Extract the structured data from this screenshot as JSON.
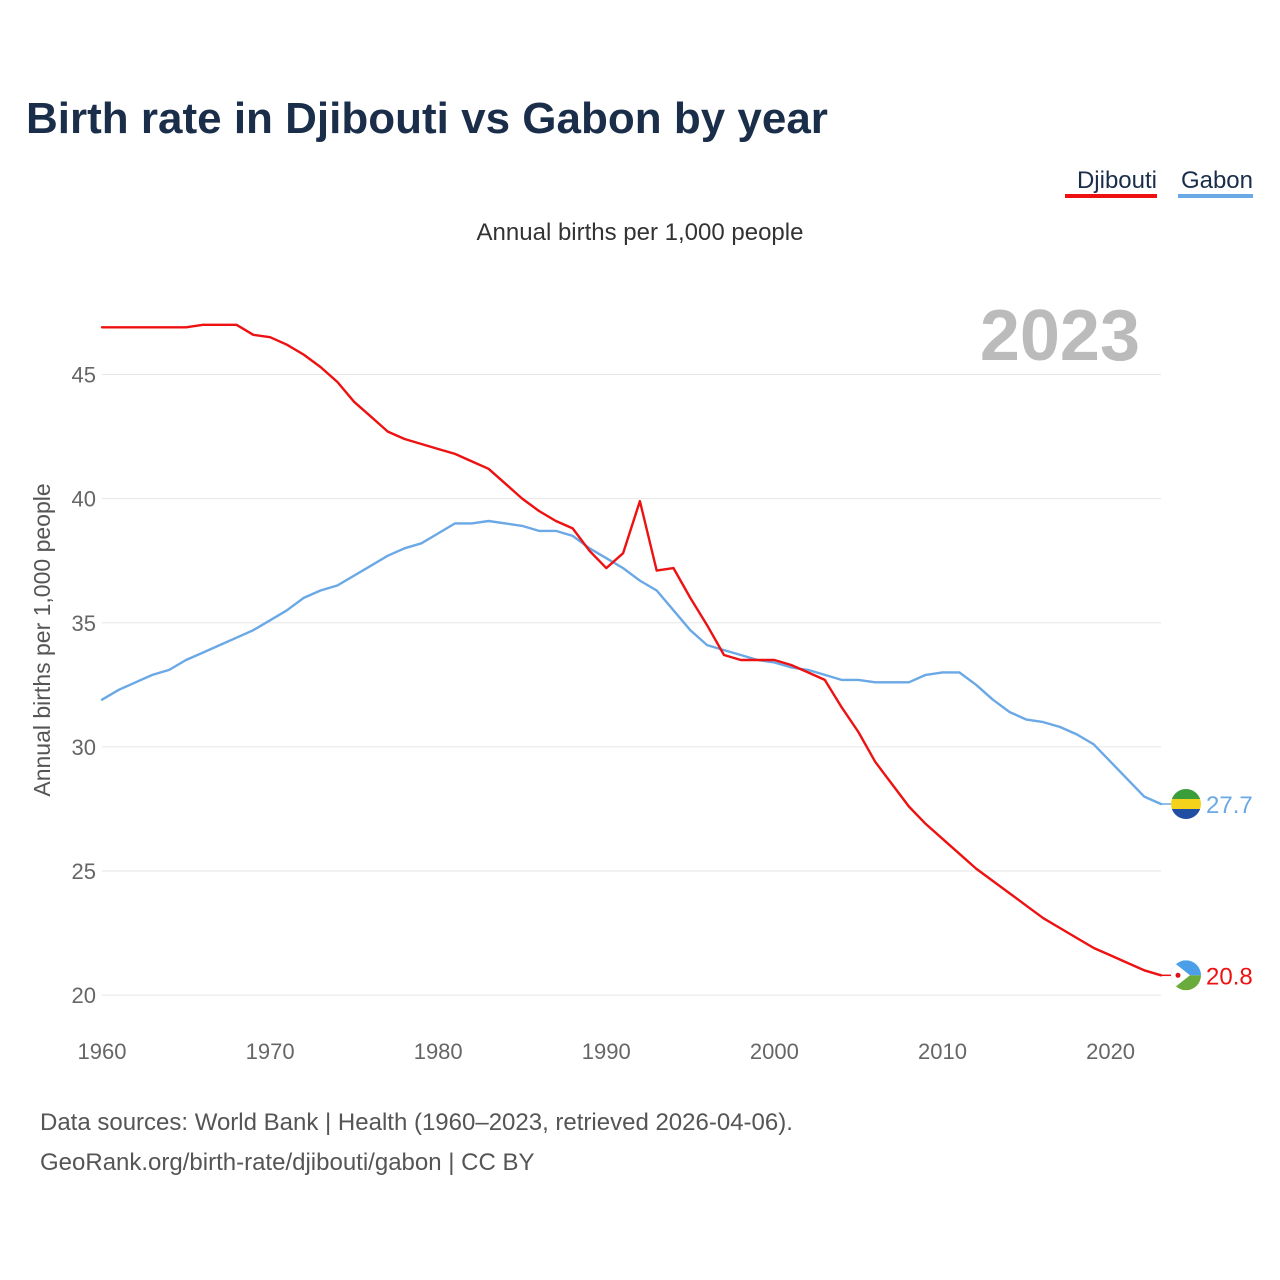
{
  "chart_data": {
    "type": "line",
    "title": "Birth rate in Djibouti vs Gabon by year",
    "subtitle": "Annual births per 1,000 people",
    "ylabel": "Annual births per 1,000 people",
    "xlabel": "",
    "year_label": "2023",
    "xlim": [
      1960,
      2023
    ],
    "ylim": [
      19,
      48
    ],
    "x_ticks": [
      1960,
      1970,
      1980,
      1990,
      2000,
      2010,
      2020
    ],
    "y_ticks": [
      20,
      25,
      30,
      35,
      40,
      45
    ],
    "grid": true,
    "legend_position": "top-right",
    "x": [
      1960,
      1961,
      1962,
      1963,
      1964,
      1965,
      1966,
      1967,
      1968,
      1969,
      1970,
      1971,
      1972,
      1973,
      1974,
      1975,
      1976,
      1977,
      1978,
      1979,
      1980,
      1981,
      1982,
      1983,
      1984,
      1985,
      1986,
      1987,
      1988,
      1989,
      1990,
      1991,
      1992,
      1993,
      1994,
      1995,
      1996,
      1997,
      1998,
      1999,
      2000,
      2001,
      2002,
      2003,
      2004,
      2005,
      2006,
      2007,
      2008,
      2009,
      2010,
      2011,
      2012,
      2013,
      2014,
      2015,
      2016,
      2017,
      2018,
      2019,
      2020,
      2021,
      2022,
      2023
    ],
    "series": [
      {
        "name": "Djibouti",
        "color": "#ee1111",
        "end_label": "20.8",
        "values": [
          46.9,
          46.9,
          46.9,
          46.9,
          46.9,
          46.9,
          47.0,
          47.0,
          47.0,
          46.6,
          46.5,
          46.2,
          45.8,
          45.3,
          44.7,
          43.9,
          43.3,
          42.7,
          42.4,
          42.2,
          42.0,
          41.8,
          41.5,
          41.2,
          40.6,
          40.0,
          39.5,
          39.1,
          38.8,
          37.9,
          37.2,
          37.8,
          39.9,
          37.1,
          37.2,
          36.0,
          34.9,
          33.7,
          33.5,
          33.5,
          33.5,
          33.3,
          33.0,
          32.7,
          31.6,
          30.6,
          29.4,
          28.5,
          27.6,
          26.9,
          26.3,
          25.7,
          25.1,
          24.6,
          24.1,
          23.6,
          23.1,
          22.7,
          22.3,
          21.9,
          21.6,
          21.3,
          21.0,
          20.8
        ]
      },
      {
        "name": "Gabon",
        "color": "#6aa8e6",
        "end_label": "27.7",
        "values": [
          31.9,
          32.3,
          32.6,
          32.9,
          33.1,
          33.5,
          33.8,
          34.1,
          34.4,
          34.7,
          35.1,
          35.5,
          36.0,
          36.3,
          36.5,
          36.9,
          37.3,
          37.7,
          38.0,
          38.2,
          38.6,
          39.0,
          39.0,
          39.1,
          39.0,
          38.9,
          38.7,
          38.7,
          38.5,
          38.0,
          37.6,
          37.2,
          36.7,
          36.3,
          35.5,
          34.7,
          34.1,
          33.9,
          33.7,
          33.5,
          33.4,
          33.2,
          33.1,
          32.9,
          32.7,
          32.7,
          32.6,
          32.6,
          32.6,
          32.9,
          33.0,
          33.0,
          32.5,
          31.9,
          31.4,
          31.1,
          31.0,
          30.8,
          30.5,
          30.1,
          29.4,
          28.7,
          28.0,
          27.7
        ]
      }
    ]
  },
  "source": {
    "line1": "Data sources: World Bank | Health (1960–2023, retrieved 2026-04-06).",
    "line2": "GeoRank.org/birth-rate/djibouti/gabon | CC BY"
  }
}
